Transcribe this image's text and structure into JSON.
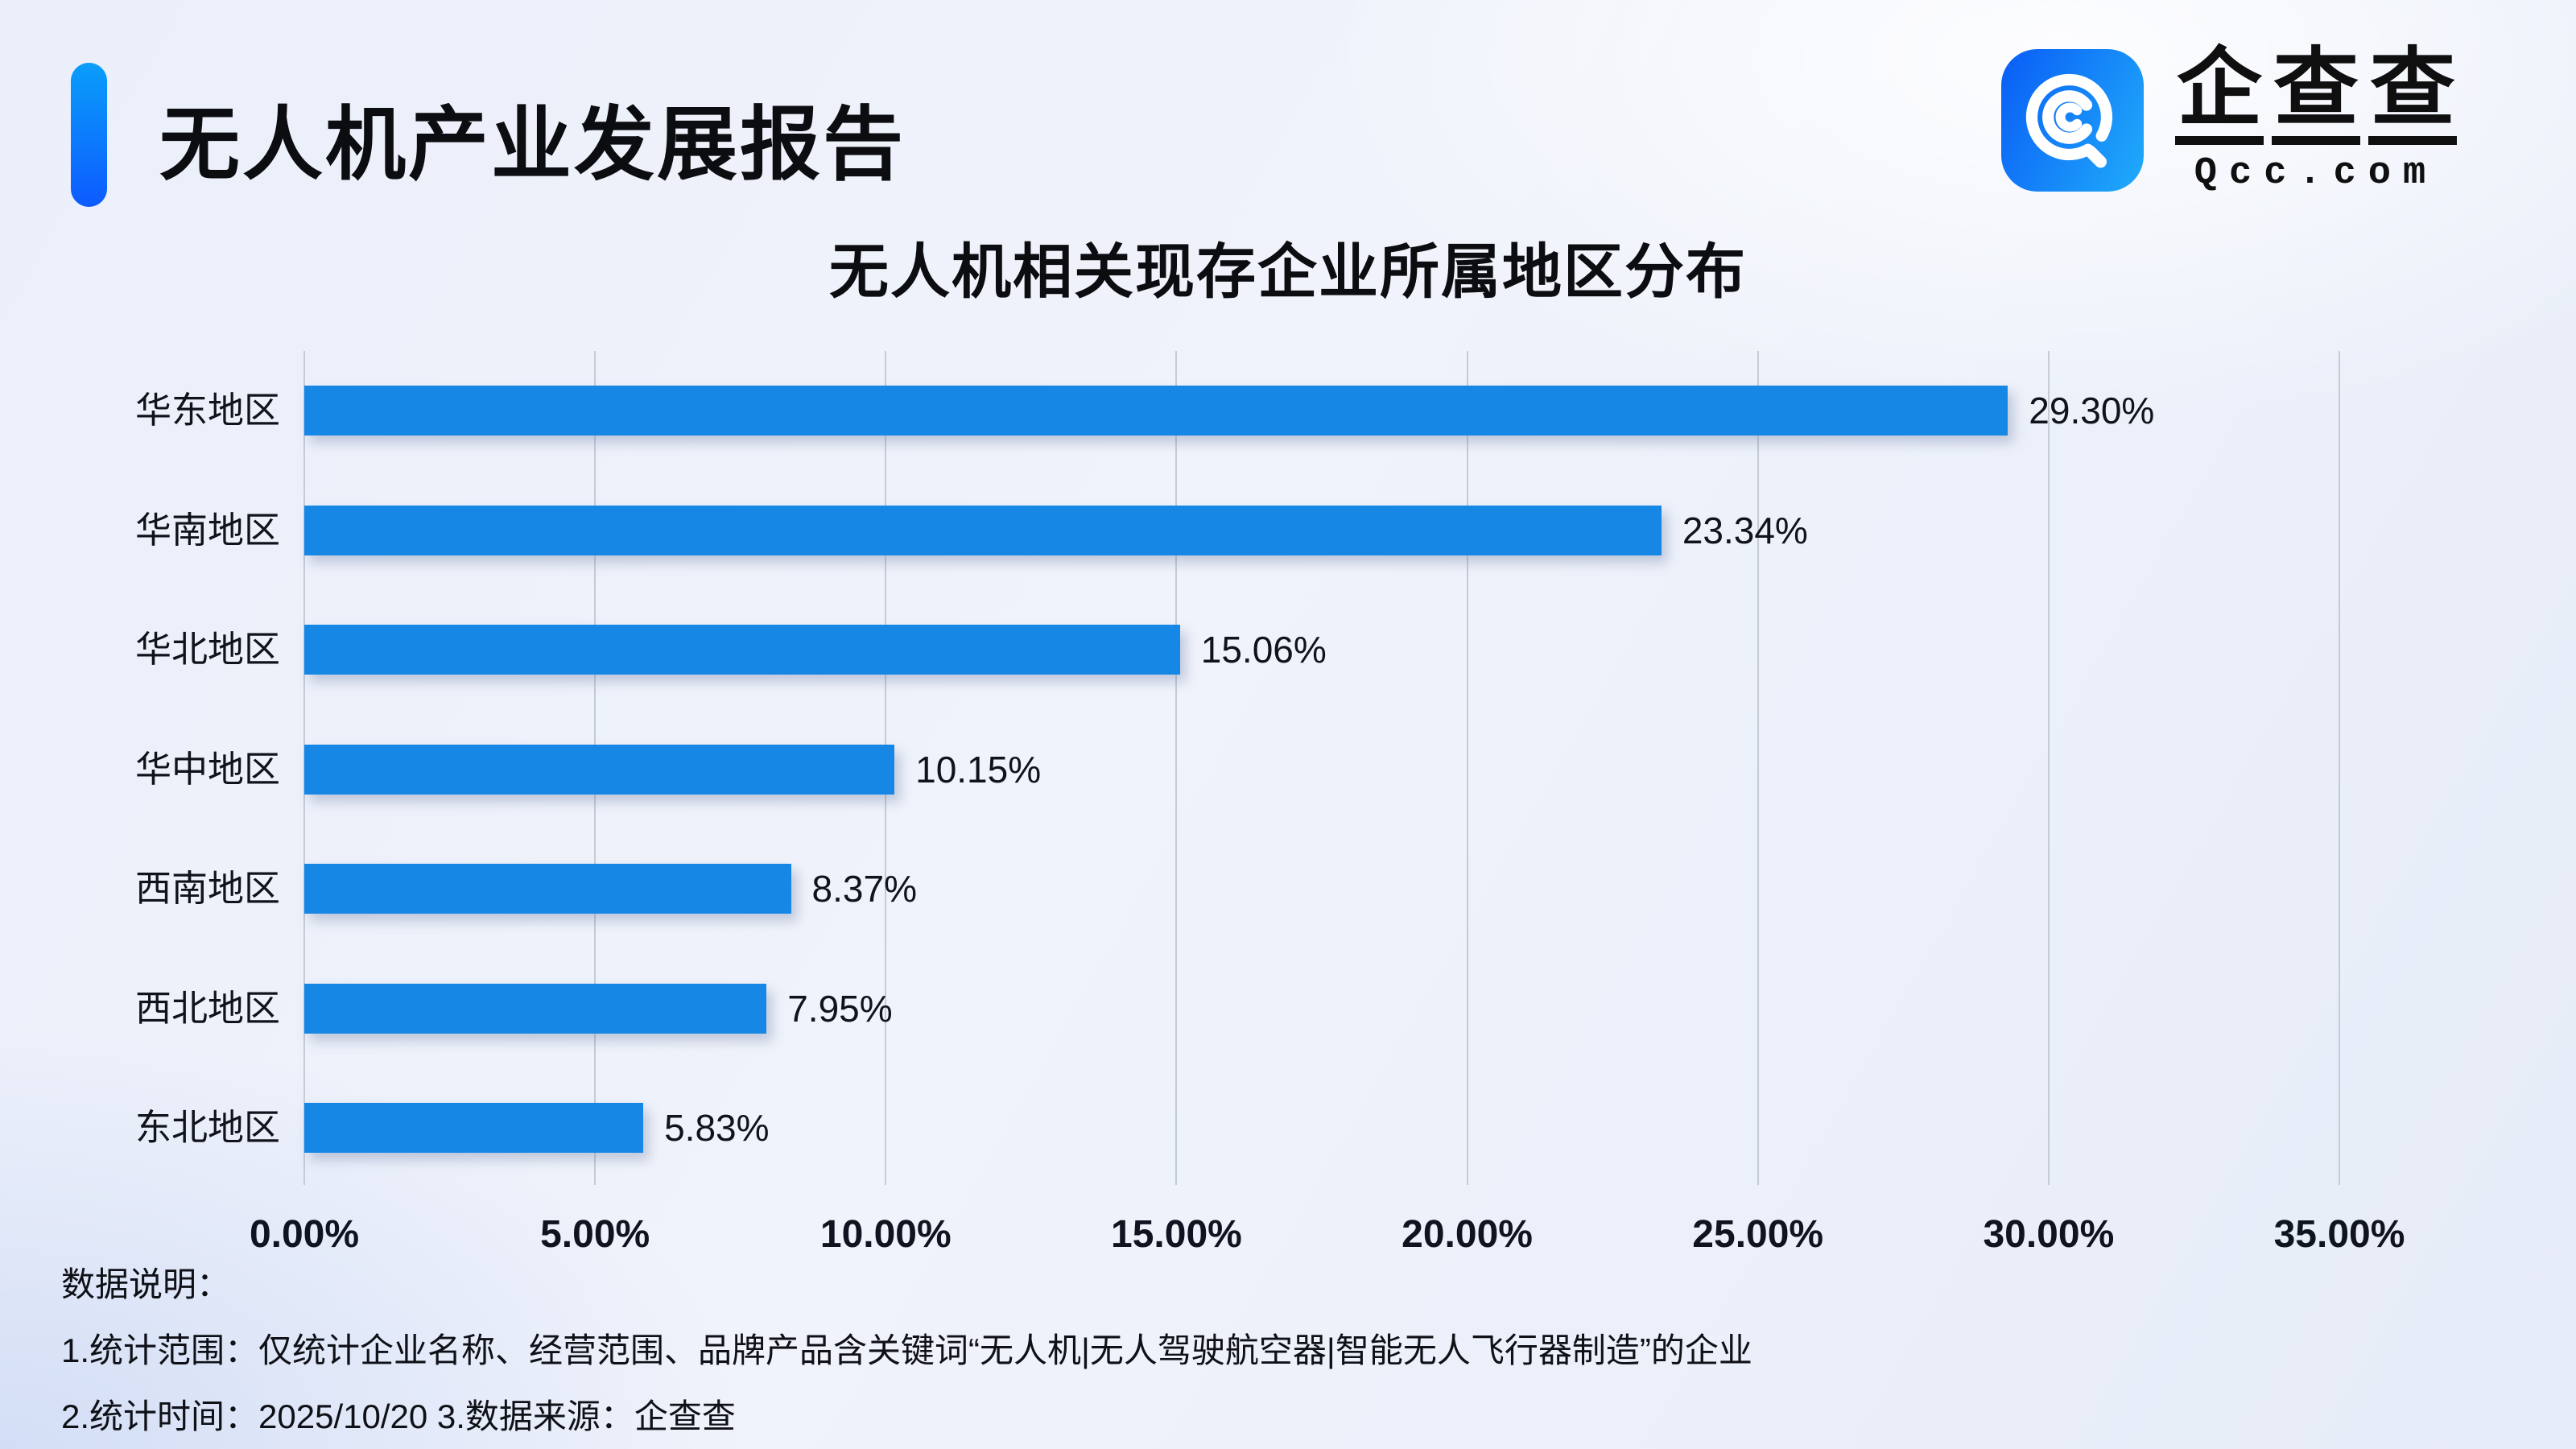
{
  "header": {
    "title": "无人机产业发展报告",
    "accent_color_top": "#0a9ef9",
    "accent_color_bottom": "#0d5bff"
  },
  "logo": {
    "name": "企查查",
    "domain": "Qcc.com",
    "square_gradient_left": "#0b63f6",
    "square_gradient_right": "#1fa8fa",
    "glyph": "qcc-magnifier-icon"
  },
  "chart_data": {
    "type": "bar",
    "orientation": "horizontal",
    "title": "无人机相关现存企业所属地区分布",
    "categories": [
      "华东地区",
      "华南地区",
      "华北地区",
      "华中地区",
      "西南地区",
      "西北地区",
      "东北地区"
    ],
    "values": [
      29.3,
      23.34,
      15.06,
      10.15,
      8.37,
      7.95,
      5.83
    ],
    "value_labels": [
      "29.30%",
      "23.34%",
      "15.06%",
      "10.15%",
      "8.37%",
      "7.95%",
      "5.83%"
    ],
    "x_ticks": [
      "0.00%",
      "5.00%",
      "10.00%",
      "15.00%",
      "20.00%",
      "25.00%",
      "30.00%",
      "35.00%"
    ],
    "xlim": [
      0,
      35
    ],
    "grid": true,
    "legend": "none",
    "bar_color": "#1787e6",
    "gridline_color": "#c5cbd7"
  },
  "footer": {
    "heading": "数据说明：",
    "line1": "1.统计范围：仅统计企业名称、经营范围、品牌产品含关键词“无人机|无人驾驶航空器|智能无人飞行器制造”的企业",
    "line2": "2.统计时间：2025/10/20 3.数据来源：企查查"
  }
}
